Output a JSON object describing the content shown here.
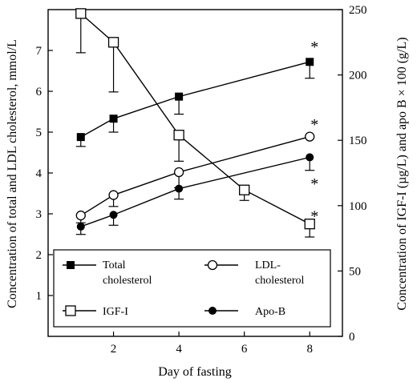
{
  "chart_data": {
    "type": "line",
    "xlabel": "Day of fasting",
    "ylabel_left": "Concentration of total and LDL cholesterol, mmol/L",
    "ylabel_right": "Concentration of IGF-I (µg/L) and apo B × 100 (g/L)",
    "xlim": [
      0,
      9
    ],
    "ylim_left": [
      0,
      8
    ],
    "ylim_right": [
      0,
      250
    ],
    "x_ticks": [
      2,
      4,
      6,
      8
    ],
    "y_left_ticks": [
      1,
      2,
      3,
      4,
      5,
      6,
      7
    ],
    "y_right_ticks": [
      0,
      50,
      100,
      150,
      200,
      250
    ],
    "series": [
      {
        "name": "Total cholesterol",
        "axis": "left",
        "marker": "filled-square",
        "x": [
          1,
          2,
          4,
          8
        ],
        "y": [
          4.88,
          5.33,
          5.87,
          6.72
        ],
        "error_minus": [
          0.23,
          0.33,
          0.43,
          0.4
        ],
        "error_plus": [
          0,
          0,
          0,
          0
        ]
      },
      {
        "name": "LDL-cholesterol",
        "axis": "left",
        "marker": "open-circle",
        "x": [
          1,
          2,
          4,
          8
        ],
        "y": [
          2.96,
          3.46,
          4.02,
          4.89
        ],
        "error_minus": [
          0.18,
          0.28,
          0.38,
          0
        ],
        "error_plus": [
          0,
          0,
          0,
          0
        ]
      },
      {
        "name": "IGF-I",
        "axis": "right",
        "marker": "open-square",
        "x": [
          1,
          2,
          4,
          6,
          8
        ],
        "y": [
          247,
          225,
          154,
          112,
          86
        ],
        "error_minus": [
          30,
          38,
          20,
          8,
          10
        ],
        "error_plus": [
          0,
          0,
          0,
          0,
          0
        ]
      },
      {
        "name": "Apo-B",
        "axis": "right",
        "marker": "filled-circle",
        "x": [
          1,
          2,
          4,
          8
        ],
        "y": [
          84,
          93,
          113,
          137
        ],
        "error_minus": [
          6,
          8,
          8,
          10
        ],
        "error_plus": [
          0,
          0,
          0,
          0
        ]
      }
    ],
    "annotations": [
      {
        "text": "*",
        "x": 8,
        "y_left": 7.1
      },
      {
        "text": "*",
        "x": 8,
        "y_left": 5.2
      },
      {
        "text": "*",
        "x": 8,
        "y_left": 3.75
      },
      {
        "text": "*",
        "x": 8,
        "y_left": 2.95
      }
    ],
    "legend": {
      "placement": "bottom-left, inside plot area",
      "items": [
        {
          "marker": "filled-square",
          "lines": [
            "Total",
            "cholesterol"
          ]
        },
        {
          "marker": "open-circle",
          "lines": [
            "LDL-",
            "cholesterol"
          ]
        },
        {
          "marker": "open-square",
          "lines": [
            "IGF-I"
          ]
        },
        {
          "marker": "filled-circle",
          "lines": [
            "Apo-B"
          ]
        }
      ]
    },
    "colors": {
      "ink": "#000000",
      "background": "#ffffff"
    }
  }
}
